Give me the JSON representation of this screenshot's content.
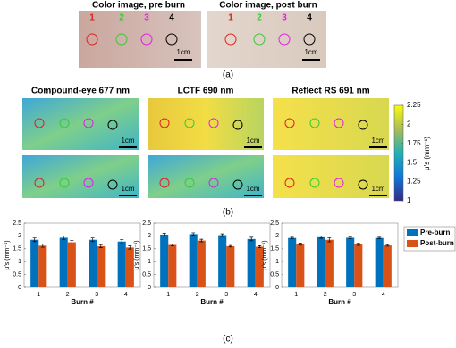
{
  "panel_a": {
    "titles": [
      "Color image, pre burn",
      "Color image, post burn"
    ],
    "numbers": [
      "1",
      "2",
      "3",
      "4"
    ]
  },
  "scale_label": "1cm",
  "panel_labels": [
    "(a)",
    "(b)",
    "(c)"
  ],
  "panel_b": {
    "titles": [
      "Compound-eye 677 nm",
      "LCTF 690 nm",
      "Reflect RS 691 nm"
    ],
    "colorbar": {
      "label": "μ′s (mm⁻¹)",
      "lim": [
        1,
        2.25
      ],
      "ticks": [
        1,
        1.25,
        {
          "value": 1.5,
          "label": "1.5"
        },
        1.75,
        2,
        2.25
      ]
    }
  },
  "chart_data": [
    {
      "type": "bar",
      "xlabel": "Burn #",
      "ylabel": "μ′s (mm⁻¹)",
      "categories": [
        "1",
        "2",
        "3",
        "4"
      ],
      "ylim": [
        0,
        2.5
      ],
      "yticks": [
        0,
        0.5,
        1,
        1.5,
        2,
        2.5
      ],
      "series": [
        {
          "color": "#0072bd",
          "values": [
            1.85,
            1.93,
            1.85,
            1.78
          ],
          "errors": [
            0.07,
            0.07,
            0.07,
            0.08
          ]
        },
        {
          "color": "#d95319",
          "values": [
            1.62,
            1.75,
            1.6,
            1.55
          ],
          "errors": [
            0.06,
            0.07,
            0.06,
            0.06
          ]
        }
      ]
    },
    {
      "type": "bar",
      "xlabel": "Burn #",
      "ylabel": "μ′s (mm⁻¹)",
      "categories": [
        "1",
        "2",
        "3",
        "4"
      ],
      "ylim": [
        0,
        2.5
      ],
      "yticks": [
        0,
        0.5,
        1,
        1.5,
        2,
        2.5
      ],
      "series": [
        {
          "color": "#0072bd",
          "values": [
            2.05,
            2.07,
            2.03,
            1.88
          ],
          "errors": [
            0.05,
            0.05,
            0.05,
            0.07
          ]
        },
        {
          "color": "#d95319",
          "values": [
            1.65,
            1.82,
            1.6,
            1.58
          ],
          "errors": [
            0.03,
            0.05,
            0.03,
            0.04
          ]
        }
      ]
    },
    {
      "type": "bar",
      "xlabel": "Burn #",
      "ylabel": "μ′s (mm⁻¹)",
      "categories": [
        "1",
        "2",
        "3",
        "4"
      ],
      "ylim": [
        0,
        2.5
      ],
      "yticks": [
        0,
        0.5,
        1,
        1.5,
        2,
        2.5
      ],
      "series": [
        {
          "name": "Pre-burn",
          "color": "#0072bd",
          "values": [
            1.92,
            1.95,
            1.93,
            1.92
          ],
          "errors": [
            0.03,
            0.04,
            0.03,
            0.03
          ]
        },
        {
          "name": "Post-burn",
          "color": "#d95319",
          "values": [
            1.68,
            1.85,
            1.67,
            1.63
          ],
          "errors": [
            0.04,
            0.08,
            0.04,
            0.03
          ]
        }
      ]
    }
  ]
}
